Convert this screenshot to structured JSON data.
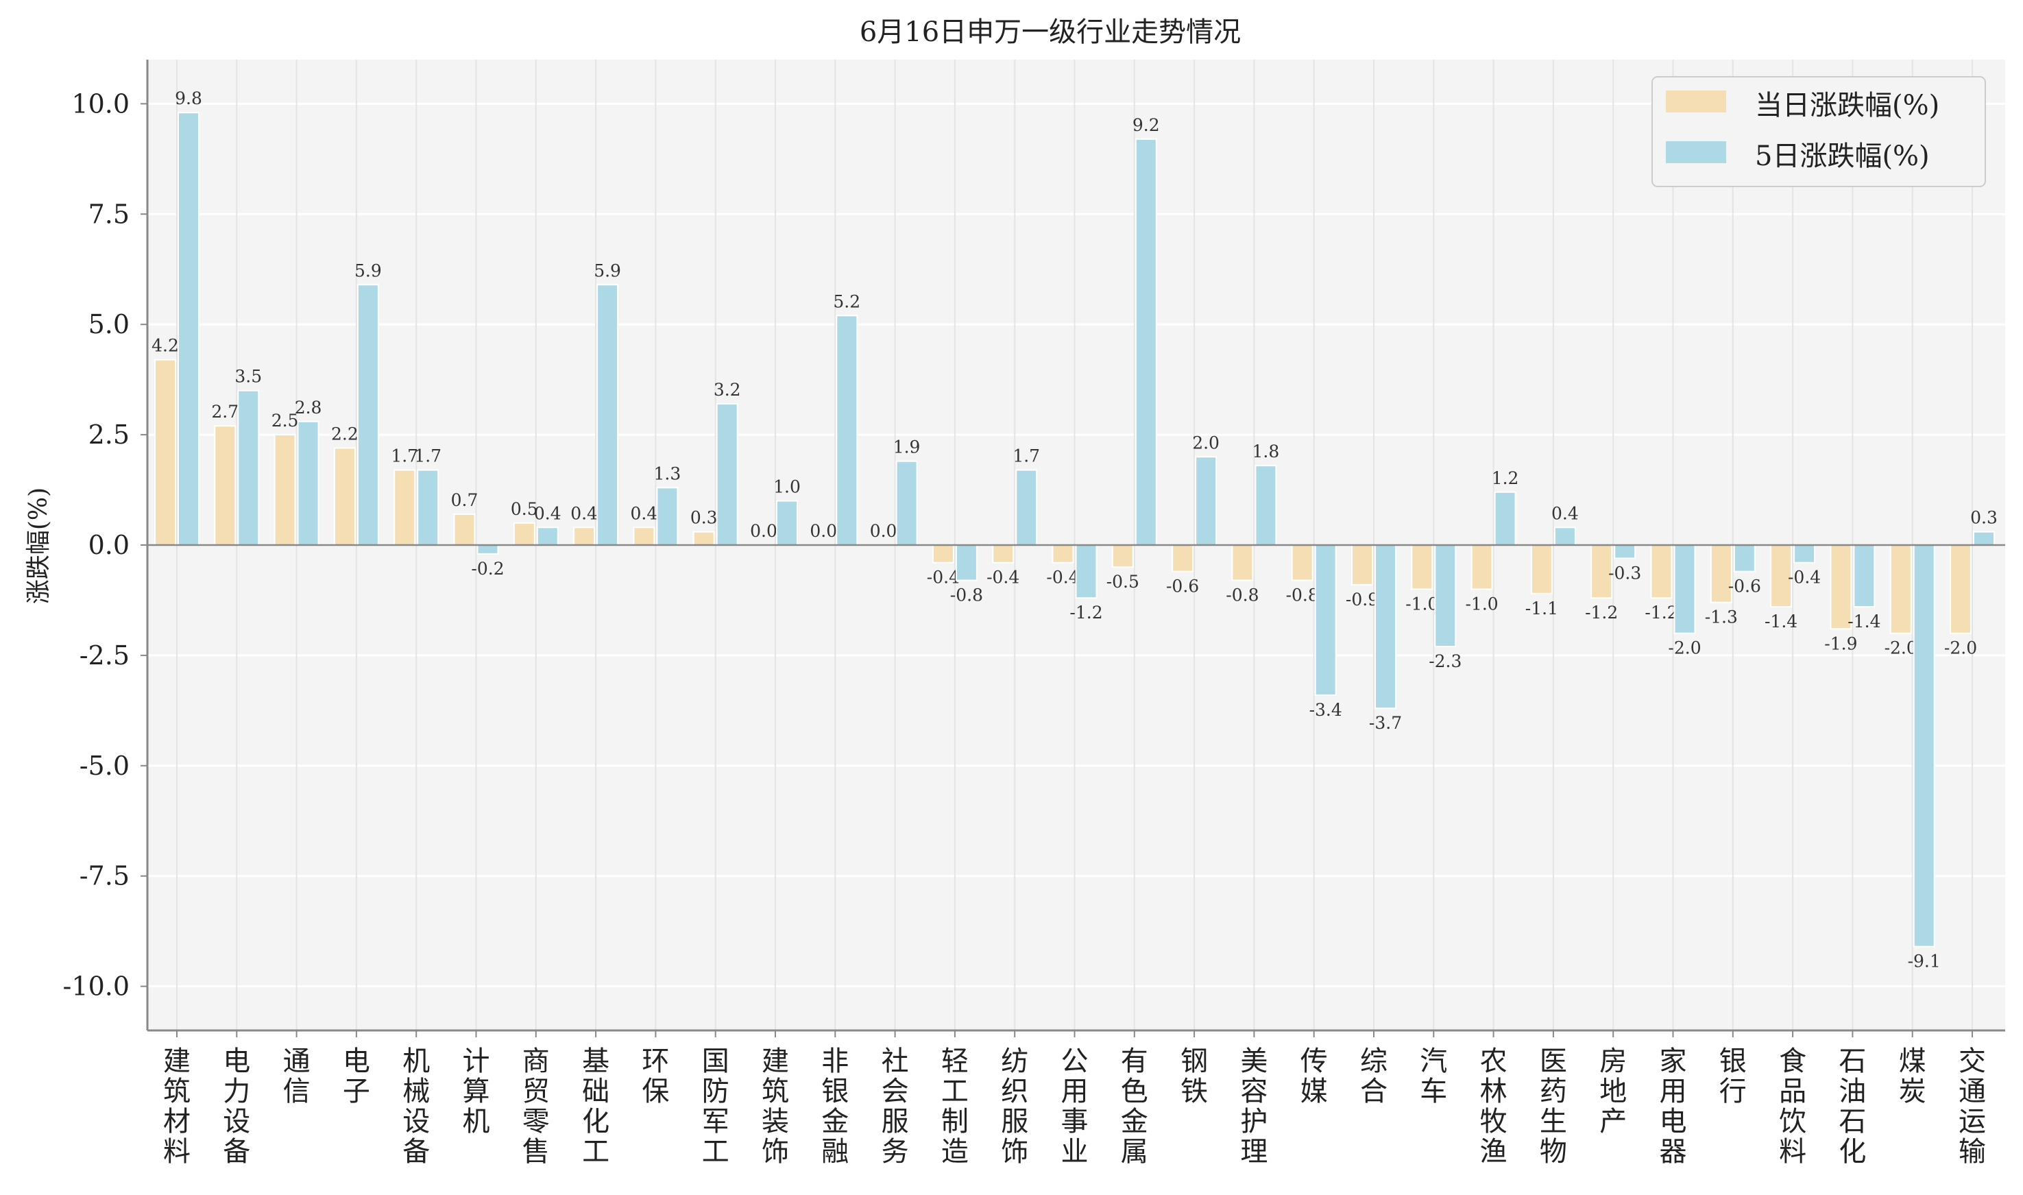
{
  "chart_data": {
    "type": "bar",
    "title": "6月16日申万一级行业走势情况",
    "xlabel": "",
    "ylabel": "涨跌幅(%)",
    "ylim": [
      -11.0,
      11.0
    ],
    "yticks": [
      10.0,
      7.5,
      5.0,
      2.5,
      0.0,
      -2.5,
      -5.0,
      -7.5,
      -10.0
    ],
    "ytick_labels": [
      "10.0",
      "7.5",
      "5.0",
      "2.5",
      "0.0",
      "-2.5",
      "-5.0",
      "-7.5",
      "-10.0"
    ],
    "grid": true,
    "legend_position": "top-right",
    "categories": [
      "建筑材料",
      "电力设备",
      "通信",
      "电子",
      "机械设备",
      "计算机",
      "商贸零售",
      "基础化工",
      "环保",
      "国防军工",
      "建筑装饰",
      "非银金融",
      "社会服务",
      "轻工制造",
      "纺织服饰",
      "公用事业",
      "有色金属",
      "钢铁",
      "美容护理",
      "传媒",
      "综合",
      "汽车",
      "农林牧渔",
      "医药生物",
      "房地产",
      "家用电器",
      "银行",
      "食品饮料",
      "石油石化",
      "煤炭",
      "交通运输"
    ],
    "series": [
      {
        "name": "当日涨跌幅(%)",
        "color": "#f5deb3",
        "values": [
          4.2,
          2.7,
          2.5,
          2.2,
          1.7,
          0.7,
          0.5,
          0.4,
          0.4,
          0.3,
          0.0,
          0.0,
          0.0,
          -0.4,
          -0.4,
          -0.4,
          -0.5,
          -0.6,
          -0.8,
          -0.8,
          -0.9,
          -1.0,
          -1.0,
          -1.1,
          -1.2,
          -1.2,
          -1.3,
          -1.4,
          -1.9,
          -2.0,
          -2.0
        ],
        "labels": [
          "4.2",
          "2.7",
          "2.5",
          "2.2",
          "1.7",
          "0.7",
          "0.5",
          "0.4",
          "0.4",
          "0.3",
          "0.0",
          "0.0",
          "0.0",
          "-0.4",
          "-0.4",
          "-0.4",
          "-0.5",
          "-0.6",
          "-0.8",
          "-0.8",
          "-0.9",
          "-1.0",
          "-1.0",
          "-1.1",
          "-1.2",
          "-1.2",
          "-1.3",
          "-1.4",
          "-1.9",
          "-2.0",
          "-2.0"
        ]
      },
      {
        "name": "5日涨跌幅(%)",
        "color": "#add8e6",
        "values": [
          9.8,
          3.5,
          2.8,
          5.9,
          1.7,
          -0.2,
          0.4,
          5.9,
          1.3,
          3.2,
          1.0,
          5.2,
          1.9,
          -0.8,
          1.7,
          -1.2,
          9.2,
          2.0,
          1.8,
          -3.4,
          -3.7,
          -2.3,
          1.2,
          0.4,
          -0.3,
          -2.0,
          -0.6,
          -0.4,
          -1.4,
          -9.1,
          0.3
        ],
        "labels": [
          "9.8",
          "3.5",
          "2.8",
          "5.9",
          "1.7",
          "-0.2",
          "0.4",
          "5.9",
          "1.3",
          "3.2",
          "1.0",
          "5.2",
          "1.9",
          "-0.8",
          "1.7",
          "-1.2",
          "9.2",
          "2.0",
          "1.8",
          "-3.4",
          "-3.7",
          "-2.3",
          "1.2",
          "0.4",
          "-0.3",
          "-2.0",
          "-0.6",
          "-0.4",
          "-1.4",
          "-9.1",
          "0.3"
        ]
      }
    ]
  }
}
